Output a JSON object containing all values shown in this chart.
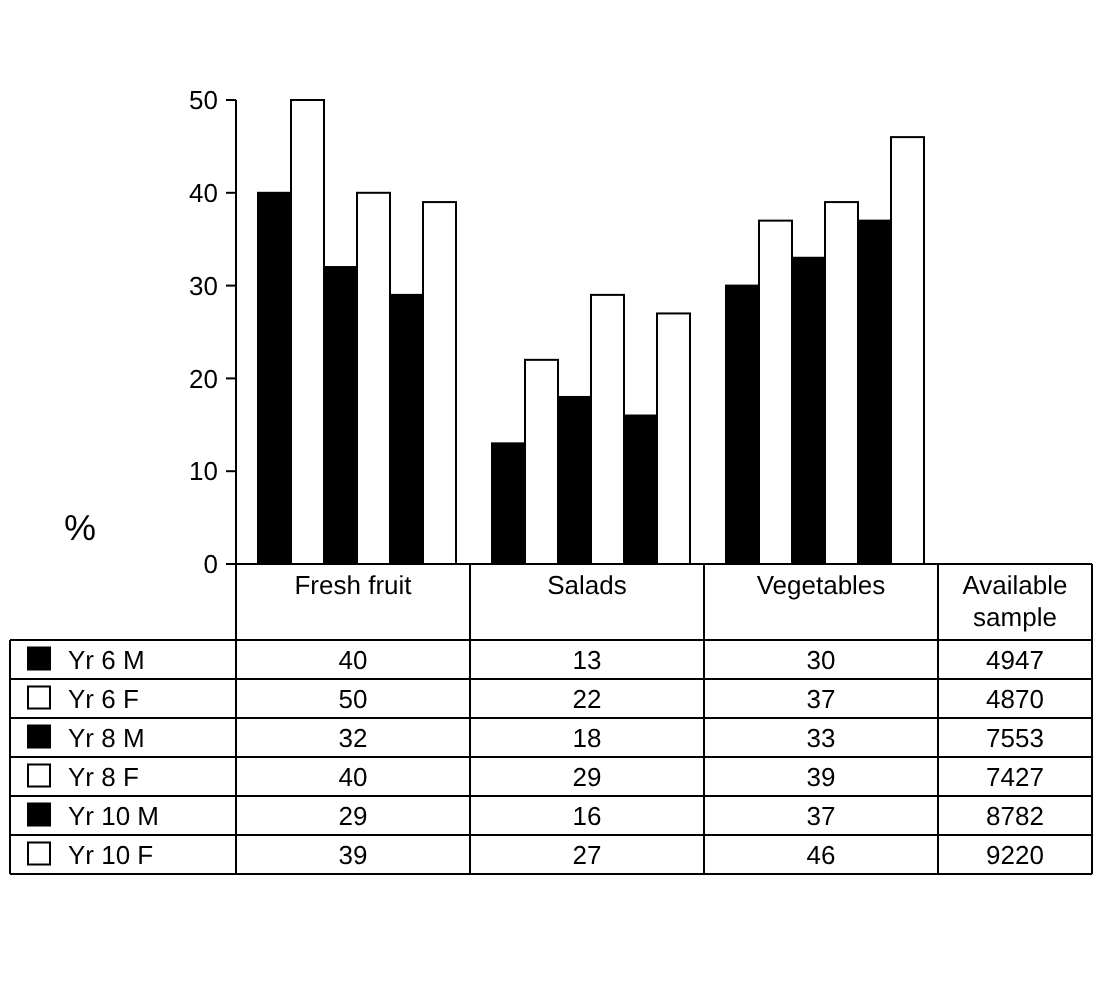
{
  "chart_data": {
    "type": "bar",
    "ylabel": "%",
    "categories": [
      "Fresh fruit",
      "Salads",
      "Vegetables"
    ],
    "series": [
      {
        "name": "Yr 6 M",
        "color": "#000000",
        "values": [
          40,
          13,
          30
        ]
      },
      {
        "name": "Yr 6 F",
        "color": "#ffffff",
        "values": [
          50,
          22,
          37
        ]
      },
      {
        "name": "Yr 8 M",
        "color": "#000000",
        "values": [
          32,
          18,
          33
        ]
      },
      {
        "name": "Yr 8 F",
        "color": "#ffffff",
        "values": [
          40,
          29,
          39
        ]
      },
      {
        "name": "Yr 10 M",
        "color": "#000000",
        "values": [
          29,
          16,
          37
        ]
      },
      {
        "name": "Yr 10 F",
        "color": "#ffffff",
        "values": [
          39,
          27,
          46
        ]
      }
    ],
    "ylim": [
      0,
      50
    ],
    "yticks": [
      0,
      10,
      20,
      30,
      40,
      50
    ],
    "grid": false,
    "legend": "bottom left",
    "data_labels": true,
    "annotations": [
      "Available sample",
      "4947",
      "4870",
      "7553",
      "7427",
      "8782",
      "9220"
    ]
  }
}
